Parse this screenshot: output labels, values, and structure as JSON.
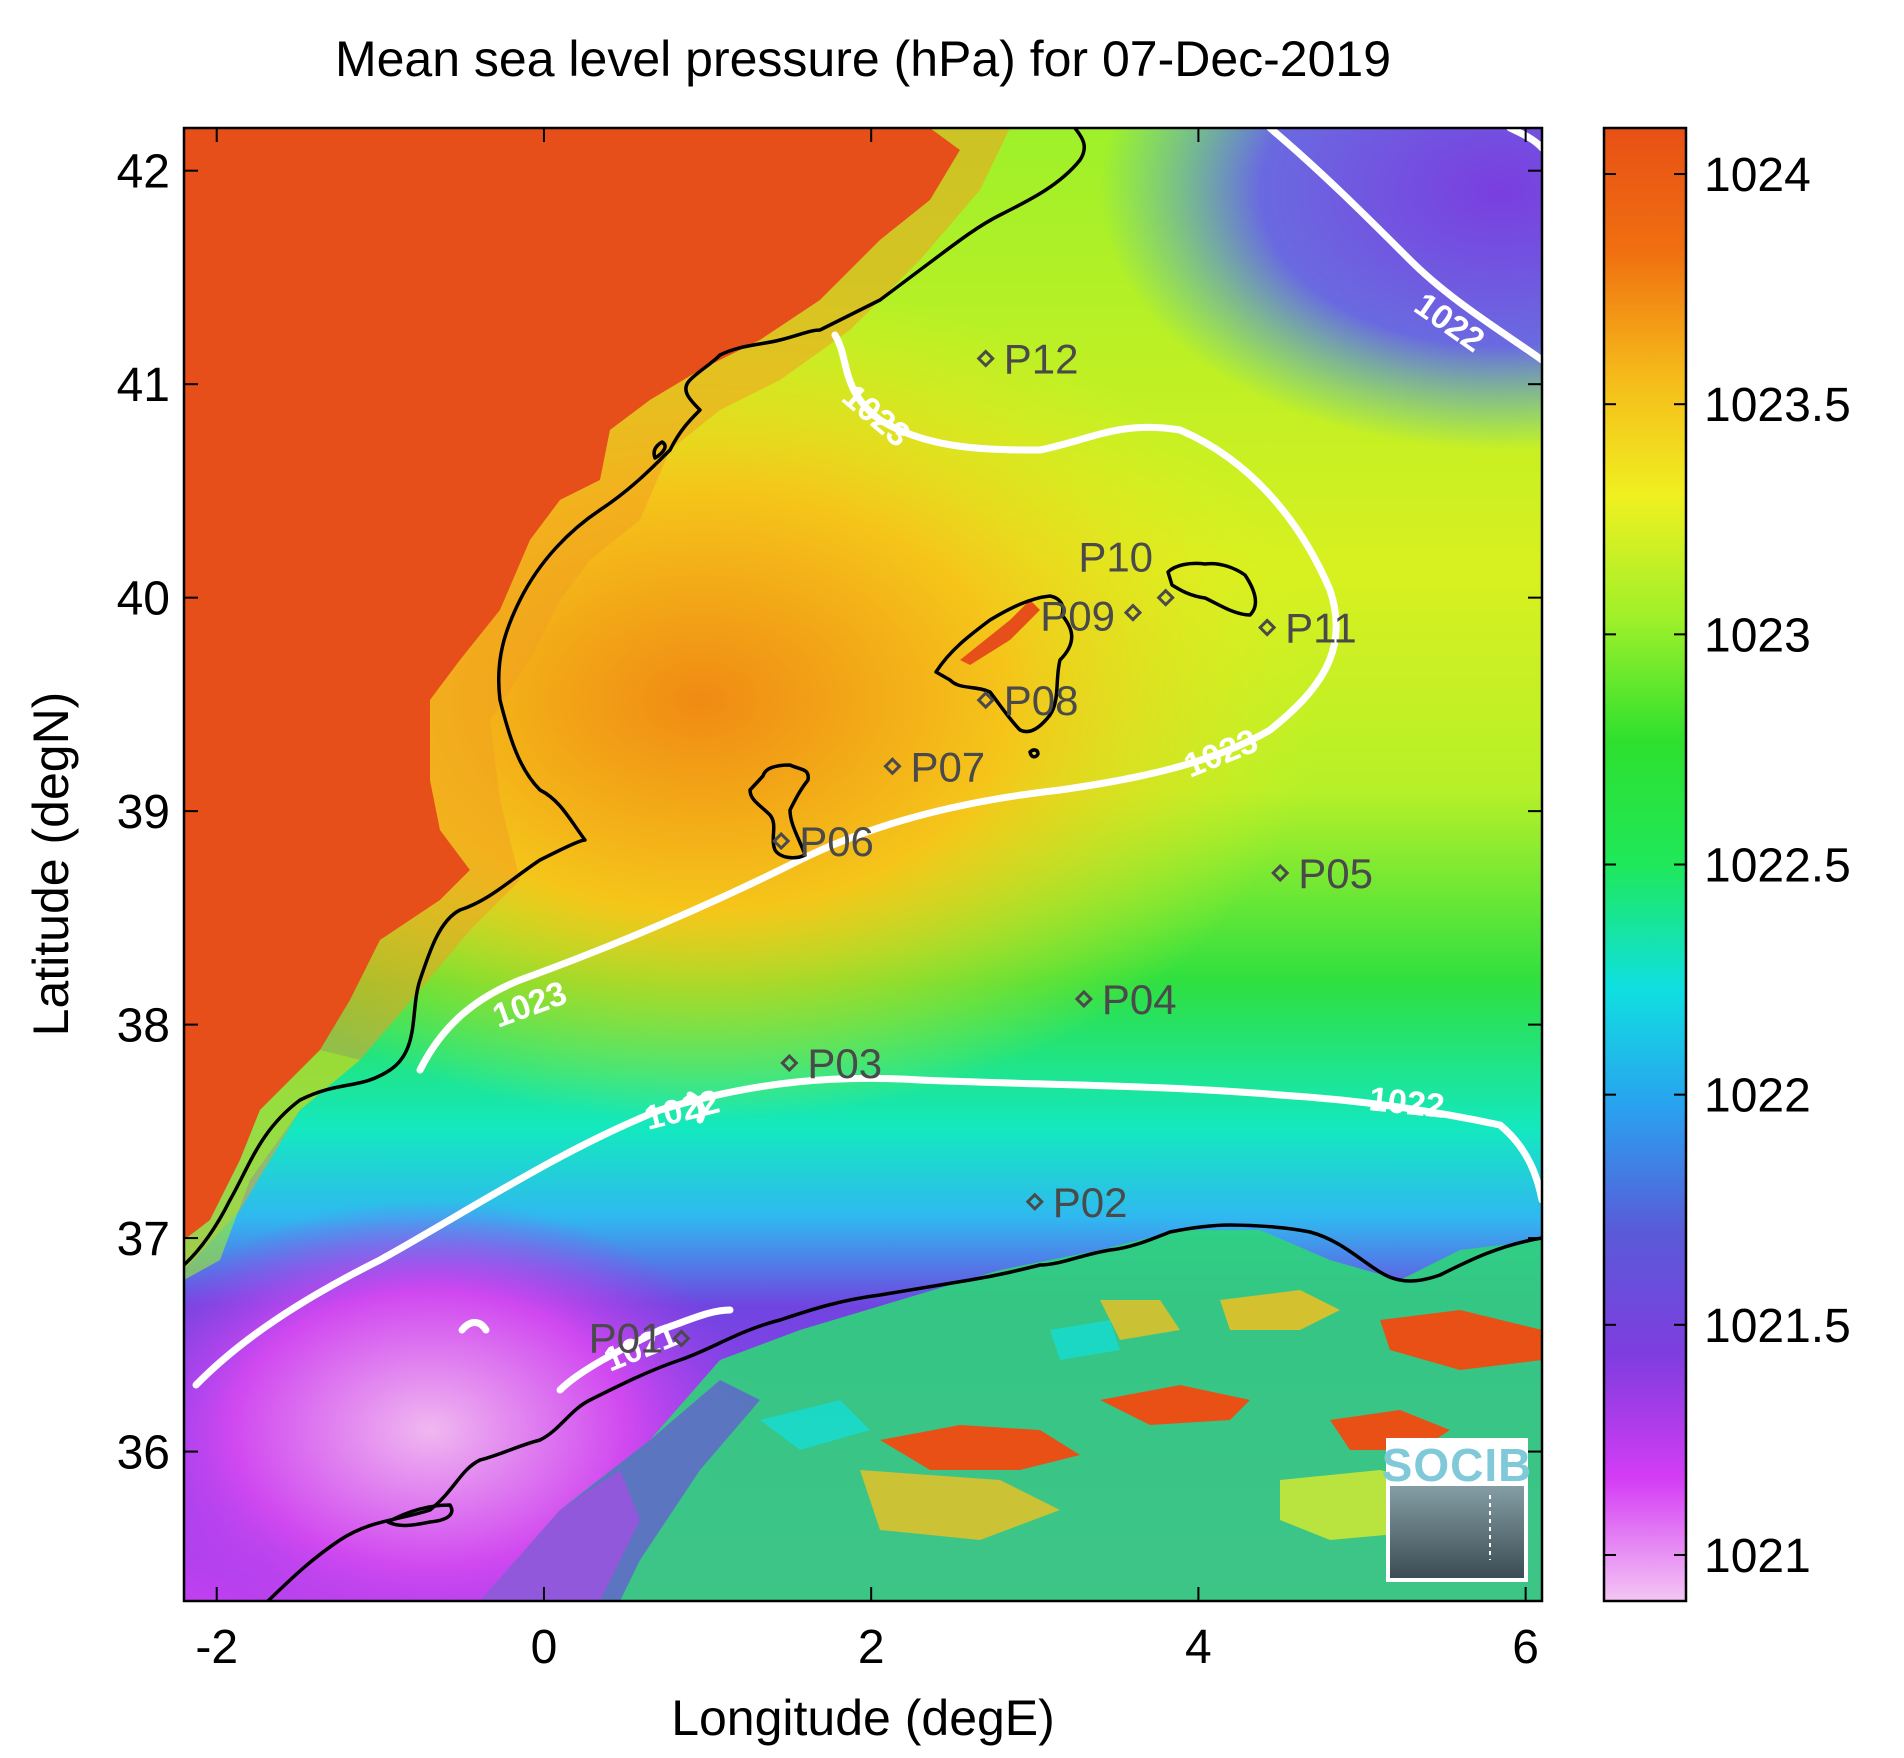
{
  "title": "Mean sea level pressure (hPa) for 07-Dec-2019",
  "xlabel": "Longitude (degE)",
  "ylabel": "Latitude (degN)",
  "x_range": [
    -2.2,
    6.1
  ],
  "y_range": [
    35.3,
    42.2
  ],
  "x_ticks": [
    -2,
    0,
    2,
    4,
    6
  ],
  "y_ticks": [
    36,
    37,
    38,
    39,
    40,
    41,
    42
  ],
  "colorbar": {
    "range": [
      1020.9,
      1024.1
    ],
    "ticks": [
      1021,
      1021.5,
      1022,
      1022.5,
      1023,
      1023.5,
      1024
    ],
    "tick_labels": [
      "1021",
      "1021.5",
      "1022",
      "1022.5",
      "1023",
      "1023.5",
      "1024"
    ],
    "colormap": [
      "#f4c6f3",
      "#d43cf5",
      "#7f3ddf",
      "#5a5ad8",
      "#2aa0f0",
      "#0fe0e0",
      "#1fe85a",
      "#2ee02e",
      "#9ef02a",
      "#f0f020",
      "#f5b91a",
      "#f06f10",
      "#e85016"
    ]
  },
  "stations": [
    {
      "id": "P01",
      "lon": 0.84,
      "lat": 36.53
    },
    {
      "id": "P02",
      "lon": 3.0,
      "lat": 37.17
    },
    {
      "id": "P03",
      "lon": 1.5,
      "lat": 37.82
    },
    {
      "id": "P04",
      "lon": 3.3,
      "lat": 38.12
    },
    {
      "id": "P05",
      "lon": 4.5,
      "lat": 38.71
    },
    {
      "id": "P06",
      "lon": 1.45,
      "lat": 38.86
    },
    {
      "id": "P07",
      "lon": 2.13,
      "lat": 39.21
    },
    {
      "id": "P08",
      "lon": 2.7,
      "lat": 39.52
    },
    {
      "id": "P09",
      "lon": 3.6,
      "lat": 39.93
    },
    {
      "id": "P10",
      "lon": 3.8,
      "lat": 40.0
    },
    {
      "id": "P11",
      "lon": 4.42,
      "lat": 39.86
    },
    {
      "id": "P12",
      "lon": 2.7,
      "lat": 41.12
    }
  ],
  "contour_labels": [
    "1023",
    "1023",
    "1023",
    "1022",
    "1022",
    "1022",
    "1021"
  ],
  "logo_text": "SOCIB",
  "colors": {
    "land_high": "#e64f1a",
    "coastline": "#000000",
    "contour": "#ffffff",
    "station": "#4a4a4a"
  }
}
